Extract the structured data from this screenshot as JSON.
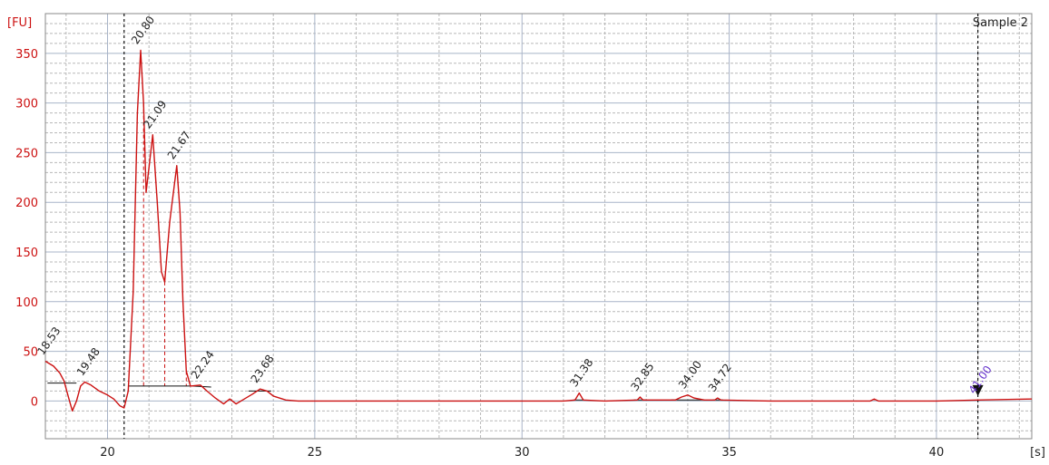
{
  "chart_data": {
    "type": "line",
    "title": "",
    "sample_label": "Sample 2",
    "ylabel": "[FU]",
    "xlabel": "[s]",
    "xlim": [
      18.5,
      42.3
    ],
    "ylim": [
      -38,
      390
    ],
    "x_ticks": [
      20,
      25,
      30,
      35,
      40
    ],
    "y_ticks": [
      0,
      50,
      100,
      150,
      200,
      250,
      300,
      350
    ],
    "grid": true,
    "colors": {
      "trace": "#cc1111",
      "axis_text": "#cc1111",
      "marker": "#6633cc",
      "grid_major": "#a8b4c8",
      "grid_minor": "#b8b8b8"
    },
    "markers": [
      20.4,
      41.0
    ],
    "series": [
      {
        "values": [
          [
            18.5,
            40
          ],
          [
            18.7,
            35
          ],
          [
            18.85,
            28
          ],
          [
            18.95,
            20
          ],
          [
            19.05,
            5
          ],
          [
            19.15,
            -10
          ],
          [
            19.25,
            0
          ],
          [
            19.35,
            15
          ],
          [
            19.45,
            19
          ],
          [
            19.6,
            16
          ],
          [
            19.8,
            10
          ],
          [
            20.0,
            6
          ],
          [
            20.15,
            2
          ],
          [
            20.3,
            -5
          ],
          [
            20.4,
            -7
          ],
          [
            20.5,
            10
          ],
          [
            20.62,
            110
          ],
          [
            20.72,
            290
          ],
          [
            20.8,
            353
          ],
          [
            20.87,
            300
          ],
          [
            20.93,
            210
          ],
          [
            21.0,
            235
          ],
          [
            21.09,
            268
          ],
          [
            21.2,
            200
          ],
          [
            21.3,
            130
          ],
          [
            21.38,
            120
          ],
          [
            21.5,
            180
          ],
          [
            21.67,
            237
          ],
          [
            21.75,
            190
          ],
          [
            21.82,
            100
          ],
          [
            21.9,
            30
          ],
          [
            22.0,
            15
          ],
          [
            22.24,
            16
          ],
          [
            22.4,
            10
          ],
          [
            22.6,
            3
          ],
          [
            22.8,
            -3
          ],
          [
            22.95,
            2
          ],
          [
            23.1,
            -3
          ],
          [
            23.3,
            2
          ],
          [
            23.5,
            7
          ],
          [
            23.68,
            12
          ],
          [
            23.85,
            10
          ],
          [
            24.0,
            5
          ],
          [
            24.3,
            1
          ],
          [
            24.6,
            0
          ],
          [
            25,
            0
          ],
          [
            26,
            0
          ],
          [
            27,
            0
          ],
          [
            28,
            0
          ],
          [
            29,
            0
          ],
          [
            30,
            0
          ],
          [
            31.0,
            0
          ],
          [
            31.28,
            1
          ],
          [
            31.38,
            8
          ],
          [
            31.48,
            1
          ],
          [
            32.0,
            0
          ],
          [
            32.78,
            1
          ],
          [
            32.85,
            4
          ],
          [
            32.92,
            1
          ],
          [
            33.7,
            1
          ],
          [
            33.85,
            4
          ],
          [
            34.0,
            6
          ],
          [
            34.15,
            3
          ],
          [
            34.4,
            1
          ],
          [
            34.65,
            1
          ],
          [
            34.72,
            3
          ],
          [
            34.8,
            1
          ],
          [
            36,
            0
          ],
          [
            38.4,
            0
          ],
          [
            38.5,
            2
          ],
          [
            38.6,
            0
          ],
          [
            40,
            0
          ],
          [
            41.0,
            1
          ],
          [
            42.3,
            2
          ]
        ]
      }
    ],
    "peak_labels": [
      {
        "x": 18.53,
        "y": 40,
        "text": "18.53"
      },
      {
        "x": 19.48,
        "y": 19,
        "text": "19.48"
      },
      {
        "x": 20.8,
        "y": 353,
        "text": "20.80"
      },
      {
        "x": 21.09,
        "y": 268,
        "text": "21.09"
      },
      {
        "x": 21.67,
        "y": 237,
        "text": "21.67"
      },
      {
        "x": 22.24,
        "y": 16,
        "text": "22.24"
      },
      {
        "x": 23.68,
        "y": 12,
        "text": "23.68"
      },
      {
        "x": 31.38,
        "y": 8,
        "text": "31.38"
      },
      {
        "x": 32.85,
        "y": 4,
        "text": "32.85"
      },
      {
        "x": 34.0,
        "y": 6,
        "text": "34.00"
      },
      {
        "x": 34.72,
        "y": 3,
        "text": "34.72"
      },
      {
        "x": 41.0,
        "y": 1,
        "text": "41.00",
        "marker": true
      }
    ],
    "baselines": [
      {
        "x": [
          18.55,
          19.25
        ],
        "y": [
          18,
          18
        ]
      },
      {
        "x": [
          20.5,
          22.0
        ],
        "y": [
          15,
          15
        ]
      },
      {
        "x": [
          22.05,
          22.5
        ],
        "y": [
          15,
          14
        ]
      },
      {
        "x": [
          23.4,
          23.95
        ],
        "y": [
          10,
          10
        ]
      },
      {
        "x": [
          31.25,
          31.5
        ],
        "y": [
          1,
          1
        ]
      },
      {
        "x": [
          32.7,
          33.0
        ],
        "y": [
          1,
          1
        ]
      },
      {
        "x": [
          33.6,
          34.4
        ],
        "y": [
          1,
          1
        ]
      },
      {
        "x": [
          34.6,
          34.85
        ],
        "y": [
          1,
          1
        ]
      }
    ],
    "dividers": [
      20.87,
      21.38,
      21.9
    ]
  }
}
